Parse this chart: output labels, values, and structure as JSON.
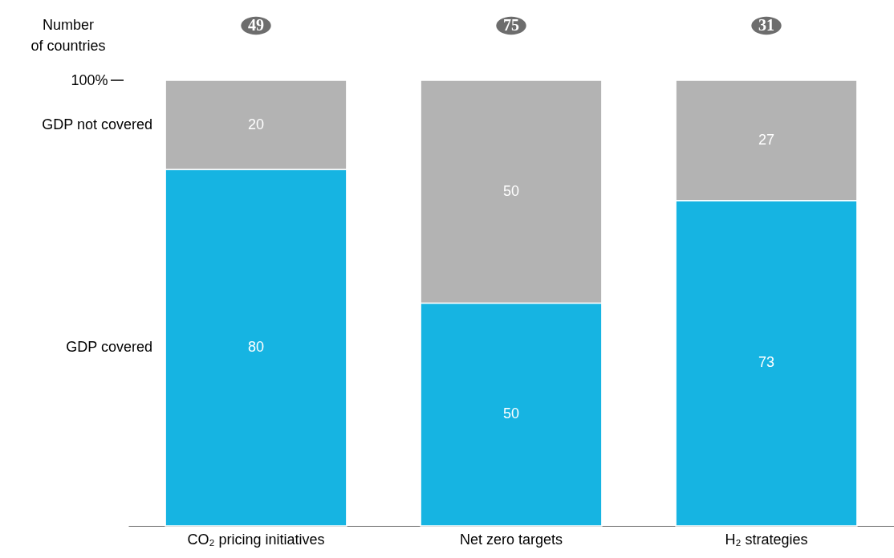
{
  "chart_data": {
    "type": "bar",
    "stacked": true,
    "categories": [
      "CO₂ pricing initiatives",
      "Net zero targets",
      "H₂ strategies"
    ],
    "series": [
      {
        "name": "GDP covered",
        "color": "#16b4e2",
        "values": [
          80,
          50,
          73
        ]
      },
      {
        "name": "GDP not covered",
        "color": "#b3b3b3",
        "values": [
          20,
          50,
          27
        ]
      }
    ],
    "ylim": [
      0,
      100
    ],
    "yticks": [
      {
        "value": 100,
        "label": "100%"
      }
    ],
    "data_labels": true,
    "legend": "left",
    "grid": false,
    "annotations": [
      "Number of countries",
      "49",
      "75",
      "31"
    ]
  }
}
